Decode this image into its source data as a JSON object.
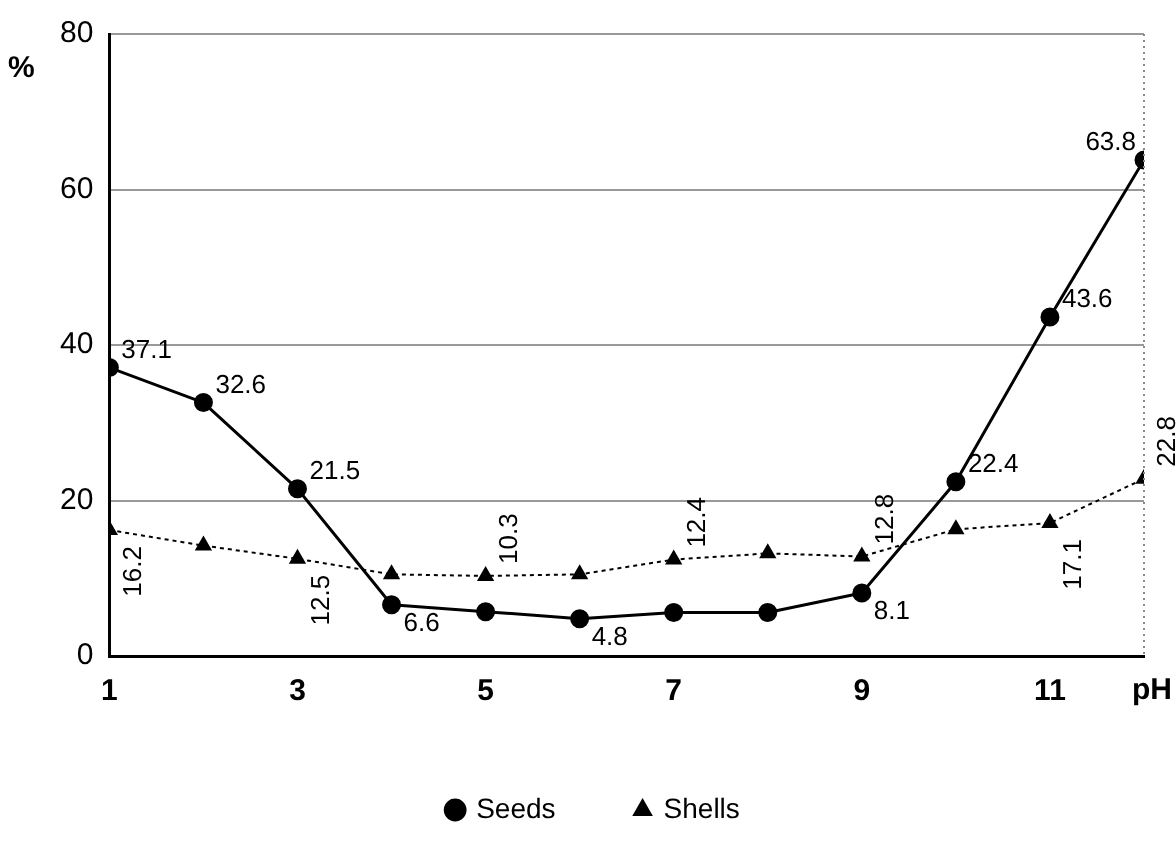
{
  "chart_data": {
    "type": "line",
    "xlabel": "pH",
    "ylabel": "%",
    "x": [
      1,
      2,
      3,
      4,
      5,
      6,
      7,
      8,
      9,
      10,
      11,
      12
    ],
    "series": [
      {
        "name": "Seeds",
        "color": "#000000",
        "marker": "circle",
        "line_style": "solid",
        "values": [
          37.1,
          32.6,
          21.5,
          6.6,
          5.7,
          4.8,
          5.6,
          5.6,
          8.1,
          22.4,
          43.6,
          63.8
        ],
        "value_labels": [
          "37.1",
          "32.6",
          "21.5",
          "6.6",
          null,
          "4.8",
          null,
          null,
          "8.1",
          "22.4",
          "43.6",
          "63.8"
        ]
      },
      {
        "name": "Shells",
        "color": "#000000",
        "marker": "triangle",
        "line_style": "dotted",
        "values": [
          16.2,
          14.2,
          12.5,
          10.5,
          10.3,
          10.5,
          12.4,
          13.2,
          12.8,
          16.3,
          17.1,
          22.8
        ],
        "value_labels": [
          "16.2",
          null,
          "12.5",
          null,
          "10.3",
          null,
          "12.4",
          null,
          "12.8",
          null,
          "17.1",
          "22.8"
        ]
      }
    ],
    "xlim": [
      1,
      12
    ],
    "xticks": [
      1,
      3,
      5,
      7,
      9,
      11
    ],
    "ylim": [
      0,
      80
    ],
    "yticks": [
      0,
      20,
      40,
      60,
      80
    ],
    "grid": "y",
    "legend": "bottom"
  }
}
